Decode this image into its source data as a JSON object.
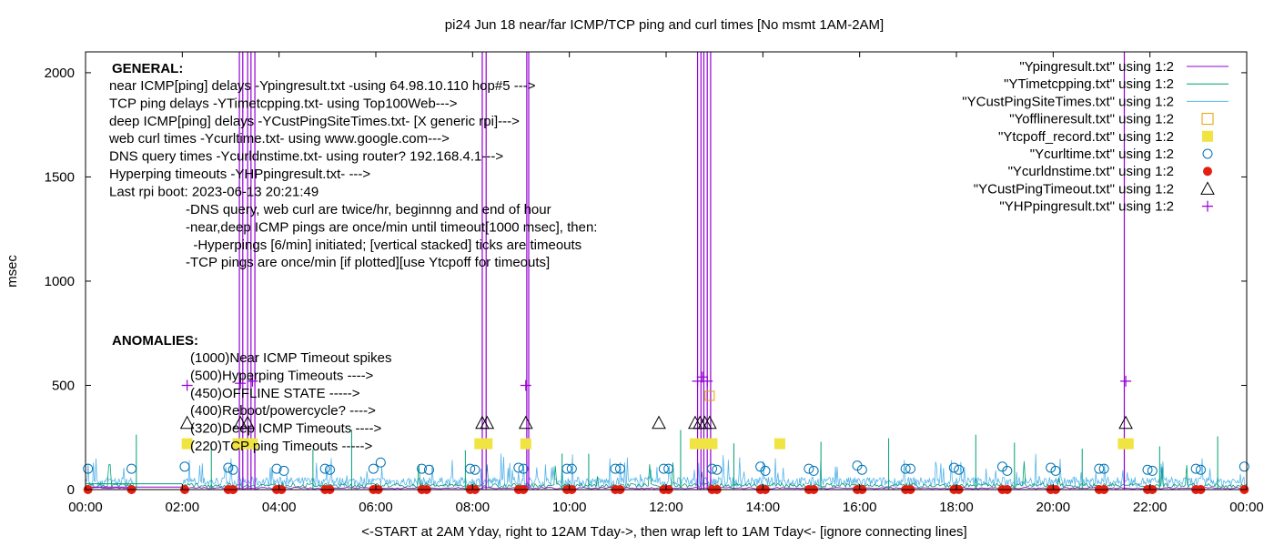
{
  "chart_data": {
    "type": "line",
    "title": "pi24 Jun 18  near/far ICMP/TCP ping and curl times [No msmt 1AM-2AM]",
    "xlabel": "<-START at 2AM Yday, right to 12AM Tday->, then wrap left to 1AM Tday<- [ignore connecting lines]",
    "ylabel": "msec",
    "xlim": [
      0,
      24
    ],
    "ylim": [
      0,
      2100
    ],
    "x_ticks": [
      {
        "v": 0,
        "label": "00:00"
      },
      {
        "v": 2,
        "label": "02:00"
      },
      {
        "v": 4,
        "label": "04:00"
      },
      {
        "v": 6,
        "label": "06:00"
      },
      {
        "v": 8,
        "label": "08:00"
      },
      {
        "v": 10,
        "label": "10:00"
      },
      {
        "v": 12,
        "label": "12:00"
      },
      {
        "v": 14,
        "label": "14:00"
      },
      {
        "v": 16,
        "label": "16:00"
      },
      {
        "v": 18,
        "label": "18:00"
      },
      {
        "v": 20,
        "label": "20:00"
      },
      {
        "v": 22,
        "label": "22:00"
      },
      {
        "v": 24,
        "label": "00:00"
      }
    ],
    "y_ticks": [
      {
        "v": 0,
        "label": "0"
      },
      {
        "v": 500,
        "label": "500"
      },
      {
        "v": 1000,
        "label": "1000"
      },
      {
        "v": 1500,
        "label": "1500"
      },
      {
        "v": 2000,
        "label": "2000"
      }
    ],
    "grid": false,
    "legend_position": "top-right",
    "legend": [
      {
        "name": "\"Ypingresult.txt\" using 1:2",
        "kind": "line",
        "color": "#9400d3"
      },
      {
        "name": "\"YTimetcpping.txt\" using 1:2",
        "kind": "line",
        "color": "#009e73"
      },
      {
        "name": "\"YCustPingSiteTimes.txt\" using 1:2",
        "kind": "line",
        "color": "#56b4e9"
      },
      {
        "name": "\"Yofflineresult.txt\" using 1:2",
        "kind": "open-square",
        "color": "#e69f00"
      },
      {
        "name": "\"Ytcpoff_record.txt\" using 1:2",
        "kind": "filled-square",
        "color": "#f0e442"
      },
      {
        "name": "\"Ycurltime.txt\" using 1:2",
        "kind": "open-circle",
        "color": "#0072b2"
      },
      {
        "name": "\"Ycurldnstime.txt\" using 1:2",
        "kind": "filled-circle",
        "color": "#e51e10"
      },
      {
        "name": "\"YCustPingTimeout.txt\" using 1:2",
        "kind": "open-triangle",
        "color": "#000000"
      },
      {
        "name": "\"YHPpingresult.txt\" using 1:2",
        "kind": "plus",
        "color": "#9400d3"
      }
    ],
    "series_data": {
      "icmp_spikes": [
        {
          "x": 3.18,
          "y": 2100
        },
        {
          "x": 3.25,
          "y": 2100
        },
        {
          "x": 3.35,
          "y": 2100
        },
        {
          "x": 3.42,
          "y": 2100
        },
        {
          "x": 3.5,
          "y": 2100
        },
        {
          "x": 8.2,
          "y": 2100
        },
        {
          "x": 8.28,
          "y": 2100
        },
        {
          "x": 9.12,
          "y": 2100
        },
        {
          "x": 9.16,
          "y": 2100
        },
        {
          "x": 12.65,
          "y": 2100
        },
        {
          "x": 12.72,
          "y": 2100
        },
        {
          "x": 12.78,
          "y": 2100
        },
        {
          "x": 12.85,
          "y": 2100
        },
        {
          "x": 12.92,
          "y": 2100
        },
        {
          "x": 21.47,
          "y": 2100
        }
      ],
      "hyperping_timeouts": [
        {
          "x": 2.1,
          "y": 500
        },
        {
          "x": 3.2,
          "y": 510
        },
        {
          "x": 3.45,
          "y": 520
        },
        {
          "x": 9.1,
          "y": 500
        },
        {
          "x": 12.65,
          "y": 520
        },
        {
          "x": 12.75,
          "y": 540
        },
        {
          "x": 12.85,
          "y": 520
        },
        {
          "x": 21.5,
          "y": 520
        }
      ],
      "offline": [
        {
          "x": 12.9,
          "y": 450
        }
      ],
      "tcp_timeouts": [
        {
          "x": 2.1,
          "y": 220
        },
        {
          "x": 3.15,
          "y": 220
        },
        {
          "x": 3.3,
          "y": 220
        },
        {
          "x": 3.45,
          "y": 220
        },
        {
          "x": 8.15,
          "y": 220
        },
        {
          "x": 8.3,
          "y": 220
        },
        {
          "x": 9.1,
          "y": 220
        },
        {
          "x": 12.6,
          "y": 220
        },
        {
          "x": 12.8,
          "y": 220
        },
        {
          "x": 12.95,
          "y": 220
        },
        {
          "x": 14.35,
          "y": 220
        },
        {
          "x": 21.45,
          "y": 220
        },
        {
          "x": 21.55,
          "y": 220
        }
      ],
      "deep_icmp_timeouts": [
        {
          "x": 2.1,
          "y": 320
        },
        {
          "x": 3.2,
          "y": 320
        },
        {
          "x": 3.35,
          "y": 320
        },
        {
          "x": 8.2,
          "y": 320
        },
        {
          "x": 8.3,
          "y": 320
        },
        {
          "x": 9.1,
          "y": 320
        },
        {
          "x": 11.85,
          "y": 320
        },
        {
          "x": 12.6,
          "y": 320
        },
        {
          "x": 12.7,
          "y": 320
        },
        {
          "x": 12.8,
          "y": 320
        },
        {
          "x": 12.9,
          "y": 320
        },
        {
          "x": 21.5,
          "y": 320
        }
      ],
      "curl_times": [
        {
          "x": 0.05,
          "y": 100
        },
        {
          "x": 0.95,
          "y": 100
        },
        {
          "x": 2.05,
          "y": 110
        },
        {
          "x": 2.95,
          "y": 105
        },
        {
          "x": 3.05,
          "y": 95
        },
        {
          "x": 3.95,
          "y": 100
        },
        {
          "x": 4.1,
          "y": 90
        },
        {
          "x": 4.95,
          "y": 100
        },
        {
          "x": 5.05,
          "y": 95
        },
        {
          "x": 5.95,
          "y": 100
        },
        {
          "x": 6.1,
          "y": 130
        },
        {
          "x": 6.95,
          "y": 100
        },
        {
          "x": 7.1,
          "y": 95
        },
        {
          "x": 7.95,
          "y": 100
        },
        {
          "x": 8.05,
          "y": 95
        },
        {
          "x": 8.95,
          "y": 105
        },
        {
          "x": 9.05,
          "y": 100
        },
        {
          "x": 9.95,
          "y": 100
        },
        {
          "x": 10.05,
          "y": 100
        },
        {
          "x": 10.95,
          "y": 100
        },
        {
          "x": 11.05,
          "y": 100
        },
        {
          "x": 11.95,
          "y": 100
        },
        {
          "x": 12.05,
          "y": 100
        },
        {
          "x": 12.95,
          "y": 100
        },
        {
          "x": 13.05,
          "y": 95
        },
        {
          "x": 13.95,
          "y": 110
        },
        {
          "x": 14.05,
          "y": 90
        },
        {
          "x": 14.95,
          "y": 100
        },
        {
          "x": 15.05,
          "y": 90
        },
        {
          "x": 15.95,
          "y": 115
        },
        {
          "x": 16.05,
          "y": 95
        },
        {
          "x": 16.95,
          "y": 100
        },
        {
          "x": 17.05,
          "y": 100
        },
        {
          "x": 17.95,
          "y": 105
        },
        {
          "x": 18.05,
          "y": 95
        },
        {
          "x": 18.95,
          "y": 110
        },
        {
          "x": 19.05,
          "y": 90
        },
        {
          "x": 19.95,
          "y": 105
        },
        {
          "x": 20.05,
          "y": 90
        },
        {
          "x": 20.95,
          "y": 100
        },
        {
          "x": 21.05,
          "y": 100
        },
        {
          "x": 21.95,
          "y": 95
        },
        {
          "x": 22.05,
          "y": 90
        },
        {
          "x": 22.95,
          "y": 100
        },
        {
          "x": 23.05,
          "y": 95
        },
        {
          "x": 23.95,
          "y": 110
        }
      ],
      "dns_times": [
        {
          "x": 0.05,
          "y": 0
        },
        {
          "x": 0.95,
          "y": 0
        },
        {
          "x": 2.05,
          "y": 0
        },
        {
          "x": 2.95,
          "y": 0
        },
        {
          "x": 3.05,
          "y": 0
        },
        {
          "x": 3.95,
          "y": 0
        },
        {
          "x": 4.05,
          "y": 0
        },
        {
          "x": 4.95,
          "y": 0
        },
        {
          "x": 5.05,
          "y": 0
        },
        {
          "x": 5.95,
          "y": 0
        },
        {
          "x": 6.05,
          "y": 0
        },
        {
          "x": 6.95,
          "y": 0
        },
        {
          "x": 7.05,
          "y": 0
        },
        {
          "x": 7.95,
          "y": 0
        },
        {
          "x": 8.05,
          "y": 0
        },
        {
          "x": 8.95,
          "y": 0
        },
        {
          "x": 9.05,
          "y": 0
        },
        {
          "x": 9.95,
          "y": 0
        },
        {
          "x": 10.05,
          "y": 0
        },
        {
          "x": 10.95,
          "y": 0
        },
        {
          "x": 11.05,
          "y": 0
        },
        {
          "x": 11.95,
          "y": 0
        },
        {
          "x": 12.05,
          "y": 0
        },
        {
          "x": 12.95,
          "y": 0
        },
        {
          "x": 13.05,
          "y": 0
        },
        {
          "x": 13.95,
          "y": 0
        },
        {
          "x": 14.05,
          "y": 0
        },
        {
          "x": 14.95,
          "y": 0
        },
        {
          "x": 15.05,
          "y": 0
        },
        {
          "x": 15.95,
          "y": 0
        },
        {
          "x": 16.05,
          "y": 0
        },
        {
          "x": 16.95,
          "y": 0
        },
        {
          "x": 17.05,
          "y": 0
        },
        {
          "x": 17.95,
          "y": 0
        },
        {
          "x": 18.05,
          "y": 0
        },
        {
          "x": 18.95,
          "y": 0
        },
        {
          "x": 19.05,
          "y": 0
        },
        {
          "x": 19.95,
          "y": 0
        },
        {
          "x": 20.05,
          "y": 0
        },
        {
          "x": 20.95,
          "y": 0
        },
        {
          "x": 21.05,
          "y": 0
        },
        {
          "x": 21.95,
          "y": 0
        },
        {
          "x": 22.05,
          "y": 0
        },
        {
          "x": 22.95,
          "y": 0
        },
        {
          "x": 23.05,
          "y": 0
        },
        {
          "x": 23.95,
          "y": 0
        }
      ]
    },
    "annotations": {
      "general_heading": "GENERAL:",
      "general_lines": [
        "near ICMP[ping] delays -Ypingresult.txt -using 64.98.10.110 hop#5 --->",
        "TCP ping delays -YTimetcpping.txt- using Top100Web--->",
        "deep ICMP[ping] delays -YCustPingSiteTimes.txt- [X generic rpi]--->",
        "web curl times -Ycurltime.txt- using www.google.com--->",
        "DNS query times -Ycurldnstime.txt- using router? 192.168.4.1--->",
        "Hyperping timeouts -YHPpingresult.txt- --->",
        "Last rpi boot: 2023-06-13 20:21:49"
      ],
      "notes_lines": [
        "-DNS query, web curl are twice/hr, beginnng and end of hour",
        "-near,deep ICMP pings are once/min until timeout[1000 msec], then:",
        "  -Hyperpings [6/min] initiated; [vertical stacked] ticks are timeouts",
        "-TCP pings are once/min [if plotted][use Ytcpoff for timeouts]"
      ],
      "anomalies_heading": "ANOMALIES:",
      "anomalies_lines": [
        "(1000)Near ICMP Timeout spikes",
        "(500)Hyperping Timeouts ---->",
        "(450)OFFLINE STATE ----->",
        "(400)Reboot/powercycle? ---->",
        "(320)Deep ICMP Timeouts ---->",
        "(220)TCP ping Timeouts ----->"
      ]
    }
  }
}
